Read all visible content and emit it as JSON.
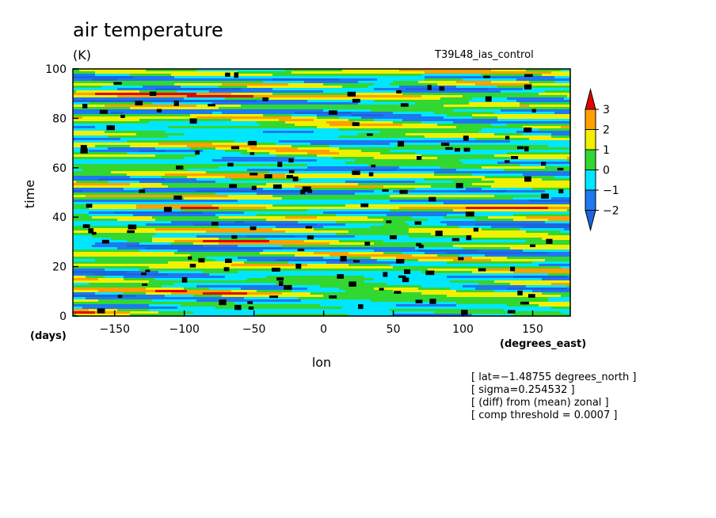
{
  "chart_data": {
    "type": "heatmap",
    "title": "air temperature",
    "units": "(K)",
    "run_label": "T39L48_ias_control",
    "xlabel": "lon",
    "x_units": "(degrees_east)",
    "ylabel": "time",
    "y_units": "(days)",
    "xlim": [
      -180,
      177
    ],
    "ylim": [
      0,
      100
    ],
    "x_ticks": [
      -150,
      -100,
      -50,
      0,
      50,
      100,
      150
    ],
    "y_ticks": [
      0,
      20,
      40,
      60,
      80,
      100
    ],
    "x_tick_labels": [
      "−150",
      "−100",
      "−50",
      "0",
      "50",
      "100",
      "150"
    ],
    "y_tick_labels": [
      "0",
      "20",
      "40",
      "60",
      "80",
      "100"
    ],
    "colorbar": {
      "levels": [
        -2,
        -1,
        0,
        1,
        2,
        3
      ],
      "level_labels": [
        "−2",
        "−1",
        "0",
        "1",
        "2",
        "3"
      ],
      "colors": [
        "#1e78f0",
        "#00e6ff",
        "#32d732",
        "#f0f000",
        "#ffa000",
        "#e60000"
      ],
      "under_color": "#1e64dc",
      "over_color": "#e60000"
    },
    "field_note": "zonally-propagating anomaly bands; black patches mark points above comp threshold",
    "annotations": [
      "[ lat=−1.48755 degrees_north ]",
      "[ sigma=0.254532 ]",
      "[ (diff) from (mean) zonal ]",
      "[ comp threshold = 0.0007 ]"
    ]
  }
}
